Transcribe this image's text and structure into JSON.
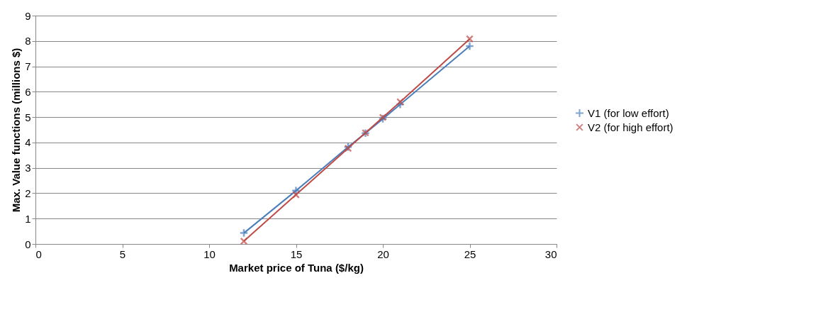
{
  "chart_data": {
    "type": "line",
    "xlabel": "Market price of Tuna ($/kg)",
    "ylabel": "Max. Value functions (millions $)",
    "x": [
      12,
      15,
      18,
      19,
      20,
      21,
      25
    ],
    "series": [
      {
        "name": "V1 (for low effort)",
        "color": "#4a7ebb",
        "marker": "cross",
        "values": [
          0.43,
          2.1,
          3.82,
          4.37,
          4.93,
          5.5,
          7.8
        ]
      },
      {
        "name": "V2 (for high effort)",
        "color": "#be4b48",
        "marker": "x",
        "values": [
          0.11,
          1.94,
          3.77,
          4.38,
          4.99,
          5.6,
          8.08
        ]
      }
    ],
    "xlim": [
      0,
      30
    ],
    "xticks": [
      0,
      5,
      10,
      15,
      20,
      25,
      30
    ],
    "ylim": [
      0,
      9
    ],
    "yticks": [
      0,
      1,
      2,
      3,
      4,
      5,
      6,
      7,
      8,
      9
    ],
    "grid": "y",
    "legend": "right",
    "line_style": "solid"
  }
}
